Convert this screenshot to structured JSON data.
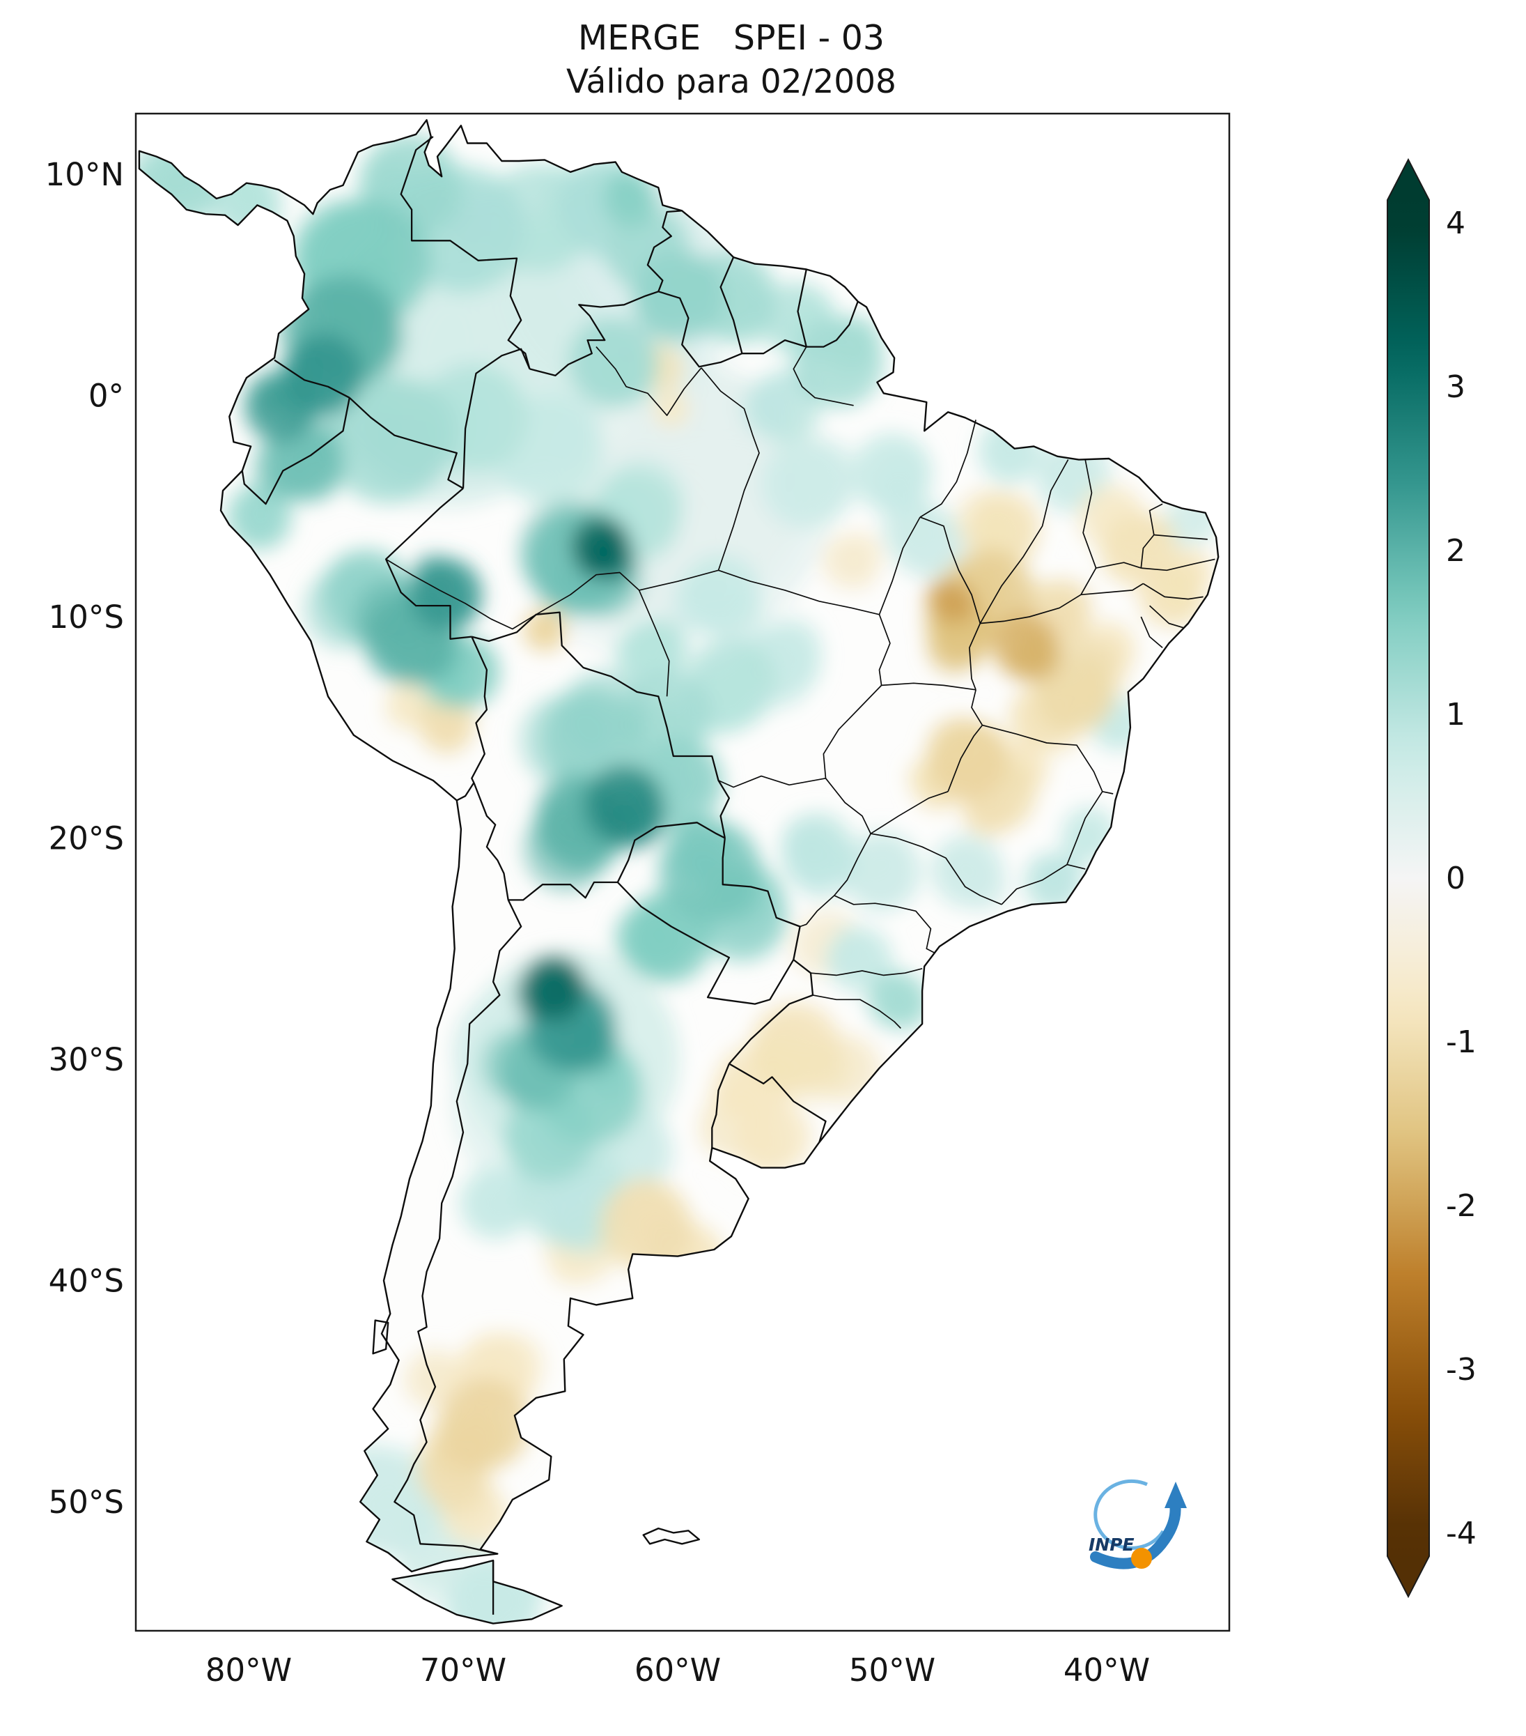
{
  "title": "MERGE   SPEI - 03",
  "subtitle": "Válido para 02/2008",
  "axes": {
    "lat_ticks": [
      {
        "label": "10°N",
        "value": 10
      },
      {
        "label": "0°",
        "value": 0
      },
      {
        "label": "10°S",
        "value": -10
      },
      {
        "label": "20°S",
        "value": -20
      },
      {
        "label": "30°S",
        "value": -30
      },
      {
        "label": "40°S",
        "value": -40
      },
      {
        "label": "50°S",
        "value": -50
      }
    ],
    "lon_ticks": [
      {
        "label": "80°W",
        "value": -80
      },
      {
        "label": "70°W",
        "value": -70
      },
      {
        "label": "60°W",
        "value": -60
      },
      {
        "label": "50°W",
        "value": -50
      },
      {
        "label": "40°W",
        "value": -40
      }
    ]
  },
  "colorbar": {
    "min": -4,
    "max": 4,
    "extend": "both",
    "ticks": [
      {
        "label": "4",
        "value": 4
      },
      {
        "label": "3",
        "value": 3
      },
      {
        "label": "2",
        "value": 2
      },
      {
        "label": "1",
        "value": 1
      },
      {
        "label": "0",
        "value": 0
      },
      {
        "label": "-1",
        "value": -1
      },
      {
        "label": "-2",
        "value": -2
      },
      {
        "label": "-3",
        "value": -3
      },
      {
        "label": "-4",
        "value": -4
      }
    ],
    "colormap_stops": [
      "#543005",
      "#8c510a",
      "#bf812d",
      "#dfc27d",
      "#f6e8c3",
      "#f5f5f5",
      "#c7eae5",
      "#80cdc1",
      "#35978f",
      "#01665e",
      "#003c30"
    ]
  },
  "logo": {
    "text": "INPE",
    "orange": "#f39200",
    "blue": "#2d7fc1",
    "light_blue": "#6ab2e2",
    "navy": "#163a66"
  },
  "chart_data": {
    "type": "heatmap",
    "title": "MERGE   SPEI - 03",
    "subtitle": "Válido para 02/2008",
    "index": "SPEI-03",
    "valid_for": "02/2008",
    "region": "South America",
    "lon_range": [
      -85.2,
      -34.3
    ],
    "lat_range": [
      -55.8,
      12.7
    ],
    "value_range": [
      -4,
      4
    ],
    "legend_position": "right",
    "anomalies": {
      "columns": [
        "lon",
        "lat",
        "radius_deg",
        "spei"
      ],
      "points": [
        [
          -83.5,
          9.5,
          2.5,
          1.2
        ],
        [
          -80.2,
          8.8,
          2.0,
          1.0
        ],
        [
          -74.5,
          6.0,
          3.5,
          1.6
        ],
        [
          -75.5,
          3.0,
          3.0,
          2.0
        ],
        [
          -76.5,
          1.0,
          2.2,
          2.4
        ],
        [
          -72.5,
          9.5,
          2.8,
          1.3
        ],
        [
          -70.0,
          7.5,
          3.5,
          1.1
        ],
        [
          -66.5,
          8.0,
          3.0,
          1.0
        ],
        [
          -63.5,
          8.5,
          2.5,
          1.1
        ],
        [
          -62.2,
          8.8,
          1.5,
          1.5
        ],
        [
          -61.5,
          6.5,
          2.2,
          1.2
        ],
        [
          -60.0,
          4.5,
          2.5,
          1.4
        ],
        [
          -57.5,
          4.5,
          2.5,
          1.2
        ],
        [
          -54.5,
          3.5,
          2.0,
          1.0
        ],
        [
          -78.5,
          -0.5,
          2.0,
          2.3
        ],
        [
          -77.5,
          -3.0,
          2.2,
          1.8
        ],
        [
          -79.5,
          -5.5,
          1.8,
          1.3
        ],
        [
          -73.5,
          -2.0,
          3.5,
          1.2
        ],
        [
          -69.5,
          -1.0,
          3.0,
          1.0
        ],
        [
          -66.0,
          -2.5,
          3.0,
          0.8
        ],
        [
          -63.0,
          1.5,
          2.5,
          1.2
        ],
        [
          -70.0,
          2.0,
          8.0,
          0.55
        ],
        [
          -63.0,
          5.0,
          6.0,
          0.45
        ],
        [
          -60.0,
          -4.0,
          7.0,
          0.3
        ],
        [
          -63.6,
          -6.8,
          1.6,
          3.2
        ],
        [
          -64.5,
          -7.5,
          3.0,
          1.8
        ],
        [
          -62.0,
          -5.5,
          2.5,
          1.0
        ],
        [
          -70.8,
          -9.0,
          2.0,
          2.4
        ],
        [
          -72.5,
          -11.0,
          2.5,
          2.0
        ],
        [
          -74.5,
          -9.0,
          2.5,
          1.4
        ],
        [
          -70.0,
          -12.5,
          2.0,
          1.6
        ],
        [
          -52.5,
          1.5,
          2.5,
          1.2
        ],
        [
          -55.0,
          -0.5,
          2.0,
          0.9
        ],
        [
          -50.0,
          -3.5,
          2.2,
          0.8
        ],
        [
          -54.0,
          -4.0,
          2.5,
          0.7
        ],
        [
          -58.0,
          -9.0,
          2.2,
          0.8
        ],
        [
          -61.0,
          -11.5,
          1.8,
          1.0
        ],
        [
          -57.5,
          -13.0,
          2.5,
          1.0
        ],
        [
          -55.0,
          -12.0,
          2.0,
          0.8
        ],
        [
          -60.5,
          -14.5,
          2.5,
          1.2
        ],
        [
          -64.0,
          -15.5,
          2.8,
          1.4
        ],
        [
          -62.5,
          -18.5,
          2.2,
          2.6
        ],
        [
          -64.5,
          -19.5,
          2.5,
          2.0
        ],
        [
          -60.0,
          -17.5,
          2.5,
          1.4
        ],
        [
          -58.5,
          -21.5,
          2.8,
          1.7
        ],
        [
          -57.0,
          -23.5,
          2.5,
          1.4
        ],
        [
          -60.5,
          -24.5,
          2.5,
          1.6
        ],
        [
          -65.8,
          -26.8,
          1.8,
          3.1
        ],
        [
          -65.0,
          -28.5,
          2.5,
          2.4
        ],
        [
          -66.5,
          -30.5,
          2.2,
          1.8
        ],
        [
          -64.0,
          -31.5,
          2.8,
          1.5
        ],
        [
          -66.0,
          -33.5,
          2.5,
          1.3
        ],
        [
          -65.0,
          -36.0,
          3.0,
          0.9
        ],
        [
          -68.5,
          -36.5,
          2.0,
          0.8
        ],
        [
          -62.5,
          -34.0,
          2.5,
          0.7
        ],
        [
          -65.0,
          -30.0,
          6.0,
          0.6
        ],
        [
          -53.5,
          -20.5,
          2.0,
          0.9
        ],
        [
          -50.5,
          -21.5,
          2.2,
          0.7
        ],
        [
          -46.5,
          -21.5,
          2.0,
          0.7
        ],
        [
          -42.5,
          -22.0,
          1.6,
          0.9
        ],
        [
          -40.8,
          -19.8,
          1.5,
          0.8
        ],
        [
          -49.8,
          -27.3,
          1.6,
          1.2
        ],
        [
          -51.5,
          -25.5,
          1.8,
          0.8
        ],
        [
          -39.5,
          -14.8,
          1.5,
          0.8
        ],
        [
          -41.5,
          -3.5,
          2.0,
          0.7
        ],
        [
          -44.5,
          -2.5,
          1.8,
          0.8
        ],
        [
          -36.0,
          -5.5,
          1.5,
          0.6
        ],
        [
          -48.5,
          -6.5,
          2.0,
          0.7
        ],
        [
          -73.5,
          -50.0,
          3.0,
          0.7
        ],
        [
          -71.0,
          -52.0,
          2.5,
          0.6
        ],
        [
          -68.5,
          -54.5,
          2.5,
          0.8
        ],
        [
          -45.5,
          -9.0,
          2.5,
          -1.4
        ],
        [
          -46.8,
          -10.8,
          1.8,
          -1.6
        ],
        [
          -47.3,
          -9.3,
          1.2,
          -2.0
        ],
        [
          -43.8,
          -11.3,
          1.8,
          -1.8
        ],
        [
          -44.8,
          -6.0,
          2.0,
          -0.9
        ],
        [
          -42.5,
          -10.0,
          2.0,
          -1.0
        ],
        [
          -41.5,
          -13.5,
          2.2,
          -1.1
        ],
        [
          -43.0,
          -14.5,
          1.8,
          -0.9
        ],
        [
          -40.0,
          -11.5,
          1.6,
          -0.8
        ],
        [
          -46.5,
          -16.5,
          2.2,
          -1.2
        ],
        [
          -45.0,
          -18.0,
          2.0,
          -1.0
        ],
        [
          -47.8,
          -17.5,
          1.5,
          -0.9
        ],
        [
          -44.0,
          -16.8,
          1.5,
          -0.8
        ],
        [
          -38.5,
          -7.0,
          2.0,
          -0.9
        ],
        [
          -37.0,
          -9.0,
          1.8,
          -0.9
        ],
        [
          -39.8,
          -5.5,
          1.8,
          -0.7
        ],
        [
          -36.3,
          -8.0,
          1.4,
          -0.8
        ],
        [
          -54.5,
          -29.5,
          2.5,
          -0.9
        ],
        [
          -56.5,
          -31.0,
          2.0,
          -0.8
        ],
        [
          -55.5,
          -33.5,
          2.0,
          -0.8
        ],
        [
          -57.5,
          -33.0,
          1.8,
          -0.6
        ],
        [
          -52.0,
          -30.5,
          1.8,
          -0.6
        ],
        [
          -53.0,
          -24.8,
          1.8,
          -0.5
        ],
        [
          -61.5,
          -37.5,
          2.5,
          -1.0
        ],
        [
          -59.5,
          -39.0,
          2.0,
          -0.8
        ],
        [
          -64.5,
          -38.5,
          2.0,
          -0.7
        ],
        [
          -69.0,
          -46.5,
          2.5,
          -1.2
        ],
        [
          -70.5,
          -48.5,
          2.0,
          -1.0
        ],
        [
          -68.5,
          -44.0,
          2.0,
          -0.8
        ],
        [
          -71.5,
          -44.5,
          1.5,
          -0.6
        ],
        [
          -69.5,
          -50.5,
          1.8,
          -0.7
        ],
        [
          -60.8,
          1.2,
          1.3,
          -0.9
        ],
        [
          -60.3,
          -0.6,
          1.0,
          -0.7
        ],
        [
          -66.2,
          -10.6,
          1.2,
          -1.2
        ],
        [
          -70.8,
          -14.8,
          1.6,
          -1.0
        ],
        [
          -72.5,
          -14.0,
          1.3,
          -0.7
        ],
        [
          -52.0,
          -7.5,
          1.5,
          -0.6
        ]
      ]
    }
  }
}
